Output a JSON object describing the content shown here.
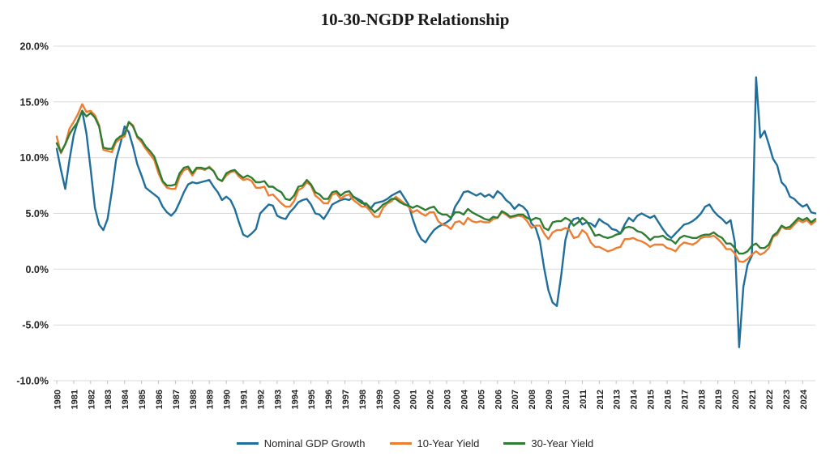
{
  "title": "10-30-NGDP Relationship",
  "chart_data": {
    "type": "line",
    "title": "10-30-NGDP Relationship",
    "xlabel": "",
    "ylabel": "",
    "ylim": [
      -10,
      20
    ],
    "grid": true,
    "grid_color": "#d9d9d9",
    "tick_color": "#bfbfbf",
    "legend_position": "bottom",
    "points_per_year": 4,
    "yticks": [
      {
        "value": 20,
        "label": "20.0%"
      },
      {
        "value": 15,
        "label": "15.0%"
      },
      {
        "value": 10,
        "label": "10.0%"
      },
      {
        "value": 5,
        "label": "5.0%"
      },
      {
        "value": 0,
        "label": "0.0%"
      },
      {
        "value": -5,
        "label": "-5.0%"
      },
      {
        "value": -10,
        "label": "-10.0%"
      }
    ],
    "years": [
      1980,
      1981,
      1982,
      1983,
      1984,
      1985,
      1986,
      1987,
      1988,
      1989,
      1990,
      1991,
      1992,
      1993,
      1994,
      1995,
      1996,
      1997,
      1998,
      1999,
      2000,
      2001,
      2002,
      2003,
      2004,
      2005,
      2006,
      2007,
      2008,
      2009,
      2010,
      2011,
      2012,
      2013,
      2014,
      2015,
      2016,
      2017,
      2018,
      2019,
      2020,
      2021,
      2022,
      2023,
      2024
    ],
    "series": [
      {
        "name": "Nominal GDP Growth",
        "color": "#1F6E9C",
        "values": [
          10.8,
          8.9,
          7.2,
          9.8,
          12.0,
          13.3,
          14.2,
          12.2,
          9.0,
          5.5,
          4.0,
          3.5,
          4.5,
          7.0,
          9.8,
          11.2,
          12.8,
          12.3,
          11.0,
          9.4,
          8.4,
          7.3,
          7.0,
          6.7,
          6.4,
          5.6,
          5.1,
          4.8,
          5.2,
          6.0,
          6.9,
          7.6,
          7.8,
          7.7,
          7.8,
          7.9,
          8.0,
          7.4,
          6.9,
          6.2,
          6.5,
          6.2,
          5.4,
          4.2,
          3.1,
          2.9,
          3.2,
          3.6,
          5.0,
          5.4,
          5.8,
          5.7,
          4.8,
          4.6,
          4.5,
          5.1,
          5.5,
          6.0,
          6.2,
          6.3,
          5.8,
          5.0,
          4.9,
          4.5,
          5.1,
          5.8,
          6.0,
          6.2,
          6.3,
          6.2,
          6.5,
          6.3,
          6.1,
          5.6,
          5.4,
          5.9,
          6.0,
          6.1,
          6.3,
          6.6,
          6.8,
          7.0,
          6.4,
          5.8,
          4.5,
          3.4,
          2.7,
          2.4,
          3.0,
          3.5,
          3.8,
          4.0,
          4.2,
          4.5,
          5.6,
          6.2,
          6.9,
          7.0,
          6.8,
          6.6,
          6.8,
          6.5,
          6.7,
          6.4,
          7.0,
          6.7,
          6.2,
          5.9,
          5.4,
          5.8,
          5.6,
          5.2,
          4.1,
          3.7,
          2.5,
          0.1,
          -1.9,
          -3.0,
          -3.3,
          -0.6,
          2.6,
          4.0,
          4.5,
          4.6,
          4.0,
          4.2,
          4.1,
          3.8,
          4.5,
          4.2,
          4.0,
          3.6,
          3.5,
          3.2,
          4.0,
          4.6,
          4.3,
          4.8,
          5.0,
          4.8,
          4.6,
          4.8,
          4.2,
          3.6,
          3.1,
          2.8,
          3.2,
          3.6,
          4.0,
          4.1,
          4.3,
          4.6,
          5.0,
          5.6,
          5.8,
          5.2,
          4.8,
          4.5,
          4.1,
          4.4,
          2.4,
          -7.0,
          -1.6,
          0.4,
          1.2,
          17.2,
          11.8,
          12.4,
          11.2,
          9.9,
          9.3,
          7.8,
          7.4,
          6.5,
          6.3,
          5.9,
          5.6,
          5.8,
          5.1,
          5.0
        ]
      },
      {
        "name": "10-Year Yield",
        "color": "#ED7D31",
        "values": [
          11.9,
          10.4,
          11.2,
          12.6,
          13.2,
          13.9,
          14.8,
          14.1,
          14.2,
          13.8,
          12.9,
          10.7,
          10.6,
          10.5,
          11.4,
          11.7,
          11.9,
          13.2,
          12.9,
          11.8,
          11.4,
          10.8,
          10.3,
          9.8,
          8.6,
          7.8,
          7.3,
          7.2,
          7.2,
          8.3,
          8.9,
          9.0,
          8.4,
          9.0,
          9.0,
          8.9,
          9.2,
          8.8,
          8.1,
          7.9,
          8.4,
          8.7,
          8.8,
          8.3,
          8.0,
          8.1,
          7.9,
          7.3,
          7.3,
          7.4,
          6.6,
          6.7,
          6.3,
          5.9,
          5.6,
          5.6,
          6.1,
          7.1,
          7.3,
          7.8,
          7.5,
          6.6,
          6.3,
          5.9,
          5.9,
          6.7,
          6.8,
          6.3,
          6.6,
          6.7,
          6.2,
          5.9,
          5.6,
          5.6,
          5.2,
          4.7,
          4.7,
          5.5,
          5.9,
          6.1,
          6.5,
          6.2,
          5.9,
          5.6,
          5.1,
          5.3,
          5.0,
          4.8,
          5.1,
          5.1,
          4.3,
          4.0,
          3.9,
          3.6,
          4.2,
          4.3,
          4.0,
          4.6,
          4.3,
          4.2,
          4.3,
          4.2,
          4.2,
          4.5,
          4.6,
          5.1,
          4.9,
          4.6,
          4.7,
          4.8,
          4.7,
          4.3,
          3.7,
          3.9,
          3.9,
          3.2,
          2.7,
          3.3,
          3.5,
          3.5,
          3.7,
          3.5,
          2.8,
          2.9,
          3.5,
          3.2,
          2.4,
          2.0,
          2.0,
          1.8,
          1.6,
          1.7,
          1.9,
          2.0,
          2.7,
          2.7,
          2.8,
          2.6,
          2.5,
          2.3,
          2.0,
          2.2,
          2.2,
          2.2,
          1.9,
          1.8,
          1.6,
          2.1,
          2.4,
          2.3,
          2.2,
          2.4,
          2.8,
          2.9,
          2.9,
          3.0,
          2.7,
          2.3,
          1.8,
          1.8,
          1.4,
          0.7,
          0.65,
          0.9,
          1.3,
          1.6,
          1.3,
          1.5,
          1.9,
          2.9,
          3.1,
          3.8,
          3.6,
          3.6,
          4.0,
          4.4,
          4.2,
          4.4,
          4.0,
          4.3
        ]
      },
      {
        "name": "30-Year Yield",
        "color": "#2E7D32",
        "values": [
          11.3,
          10.5,
          11.2,
          12.1,
          12.7,
          13.2,
          14.2,
          13.7,
          14.0,
          13.6,
          12.8,
          10.9,
          10.8,
          10.8,
          11.6,
          11.9,
          12.1,
          13.2,
          12.8,
          11.9,
          11.6,
          11.0,
          10.6,
          10.1,
          9.0,
          7.9,
          7.5,
          7.5,
          7.6,
          8.6,
          9.1,
          9.2,
          8.6,
          9.1,
          9.1,
          9.0,
          9.1,
          8.8,
          8.1,
          7.9,
          8.6,
          8.8,
          8.9,
          8.5,
          8.2,
          8.4,
          8.2,
          7.8,
          7.8,
          7.9,
          7.4,
          7.4,
          7.1,
          6.9,
          6.3,
          6.2,
          6.6,
          7.4,
          7.5,
          8.0,
          7.6,
          6.9,
          6.7,
          6.3,
          6.3,
          6.9,
          7.0,
          6.6,
          6.9,
          7.0,
          6.5,
          6.2,
          5.9,
          5.9,
          5.5,
          5.1,
          5.4,
          5.8,
          6.0,
          6.3,
          6.3,
          6.0,
          5.8,
          5.7,
          5.5,
          5.7,
          5.5,
          5.3,
          5.5,
          5.6,
          5.1,
          4.9,
          4.9,
          4.6,
          5.1,
          5.1,
          4.9,
          5.4,
          5.1,
          4.9,
          4.7,
          4.5,
          4.4,
          4.7,
          4.6,
          5.2,
          5.0,
          4.7,
          4.8,
          4.9,
          4.9,
          4.6,
          4.4,
          4.6,
          4.5,
          3.7,
          3.5,
          4.2,
          4.3,
          4.3,
          4.6,
          4.4,
          3.9,
          4.2,
          4.6,
          4.3,
          3.7,
          3.0,
          3.1,
          2.9,
          2.8,
          2.9,
          3.1,
          3.2,
          3.7,
          3.8,
          3.7,
          3.4,
          3.3,
          3.0,
          2.6,
          2.9,
          2.9,
          3.0,
          2.7,
          2.6,
          2.3,
          2.8,
          3.0,
          2.9,
          2.8,
          2.8,
          3.0,
          3.1,
          3.1,
          3.3,
          3.0,
          2.8,
          2.3,
          2.3,
          1.9,
          1.4,
          1.4,
          1.6,
          2.1,
          2.3,
          1.9,
          1.9,
          2.2,
          3.0,
          3.3,
          3.9,
          3.7,
          3.8,
          4.2,
          4.6,
          4.4,
          4.6,
          4.2,
          4.5
        ]
      }
    ]
  }
}
